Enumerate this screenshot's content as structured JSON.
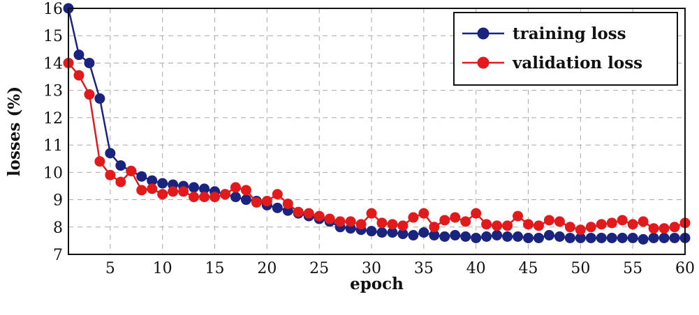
{
  "chart_data": {
    "type": "line",
    "xlabel": "epoch",
    "ylabel": "losses (%)",
    "xlim": [
      1,
      60
    ],
    "ylim": [
      7,
      16
    ],
    "xticks": [
      5,
      10,
      15,
      20,
      25,
      30,
      35,
      40,
      45,
      50,
      55,
      60
    ],
    "yticks": [
      7,
      8,
      9,
      10,
      11,
      12,
      13,
      14,
      15,
      16
    ],
    "grid": true,
    "legend_position": "top-right",
    "x": [
      1,
      2,
      3,
      4,
      5,
      6,
      7,
      8,
      9,
      10,
      11,
      12,
      13,
      14,
      15,
      16,
      17,
      18,
      19,
      20,
      21,
      22,
      23,
      24,
      25,
      26,
      27,
      28,
      29,
      30,
      31,
      32,
      33,
      34,
      35,
      36,
      37,
      38,
      39,
      40,
      41,
      42,
      43,
      44,
      45,
      46,
      47,
      48,
      49,
      50,
      51,
      52,
      53,
      54,
      55,
      56,
      57,
      58,
      59,
      60
    ],
    "series": [
      {
        "name": "training loss",
        "color": "#1a237e",
        "values": [
          16.0,
          14.3,
          14.0,
          12.7,
          10.7,
          10.25,
          10.05,
          9.85,
          9.7,
          9.6,
          9.55,
          9.5,
          9.45,
          9.4,
          9.3,
          9.2,
          9.1,
          9.0,
          8.95,
          8.8,
          8.7,
          8.6,
          8.5,
          8.4,
          8.3,
          8.2,
          8.0,
          7.95,
          7.9,
          7.85,
          7.8,
          7.8,
          7.75,
          7.7,
          7.8,
          7.7,
          7.65,
          7.7,
          7.65,
          7.6,
          7.65,
          7.7,
          7.65,
          7.65,
          7.6,
          7.6,
          7.7,
          7.65,
          7.6,
          7.6,
          7.6,
          7.6,
          7.6,
          7.6,
          7.6,
          7.55,
          7.6,
          7.6,
          7.6,
          7.6
        ]
      },
      {
        "name": "validation loss",
        "color": "#e31a1c",
        "values": [
          14.0,
          13.55,
          12.85,
          10.4,
          9.9,
          9.65,
          10.05,
          9.35,
          9.4,
          9.2,
          9.3,
          9.3,
          9.1,
          9.1,
          9.1,
          9.2,
          9.45,
          9.35,
          8.9,
          8.95,
          9.2,
          8.85,
          8.55,
          8.5,
          8.4,
          8.3,
          8.2,
          8.2,
          8.1,
          8.5,
          8.15,
          8.1,
          8.05,
          8.35,
          8.5,
          8.0,
          8.25,
          8.35,
          8.2,
          8.5,
          8.1,
          8.05,
          8.05,
          8.4,
          8.1,
          8.05,
          8.25,
          8.2,
          8.0,
          7.9,
          8.0,
          8.1,
          8.15,
          8.25,
          8.1,
          8.2,
          7.95,
          7.95,
          8.0,
          8.15
        ]
      }
    ]
  }
}
